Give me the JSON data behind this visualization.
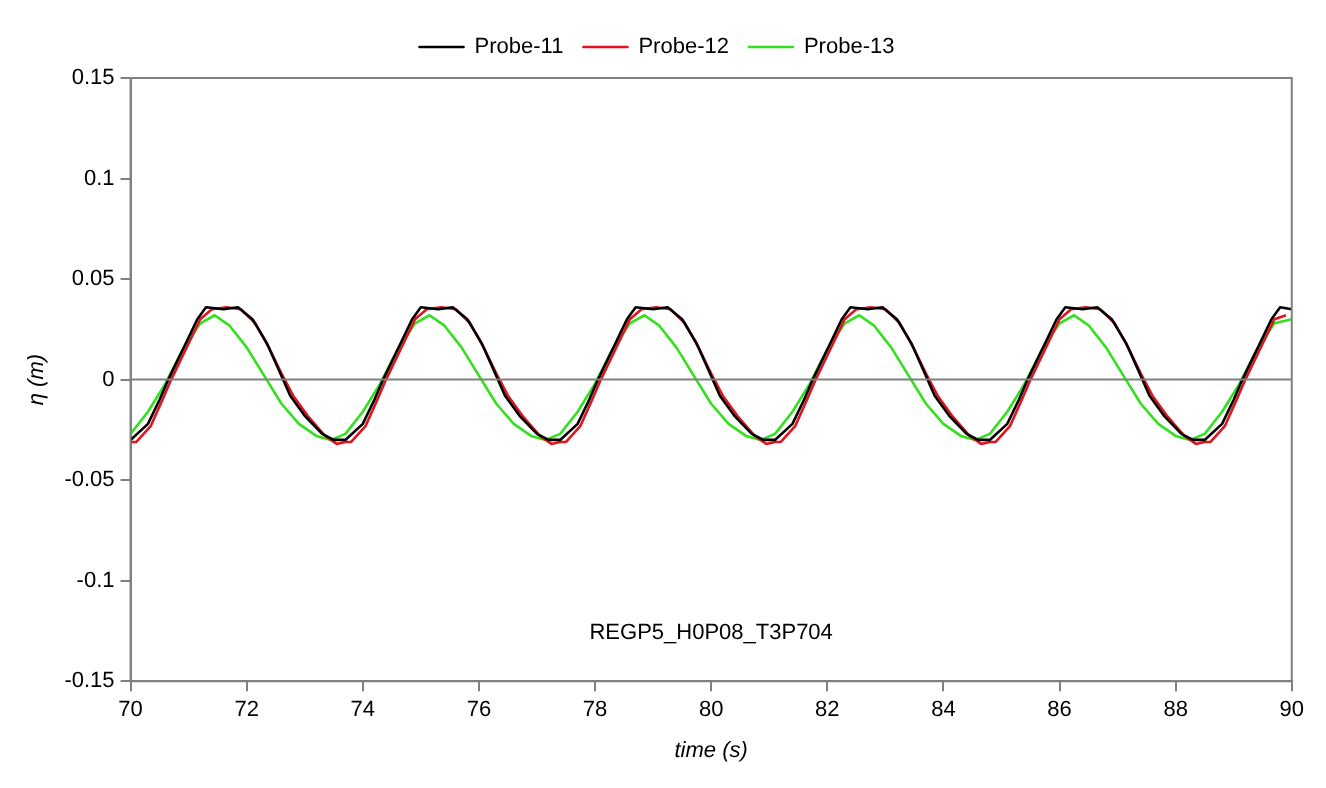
{
  "chart_data": {
    "type": "line",
    "xlabel": "time (s)",
    "ylabel": "η (m)",
    "xlim": [
      70,
      90
    ],
    "xticks": [
      70,
      72,
      74,
      76,
      78,
      80,
      82,
      84,
      86,
      88,
      90
    ],
    "ylim": [
      -0.15,
      0.15
    ],
    "yticks": [
      -0.15,
      -0.1,
      -0.05,
      0,
      0.05,
      0.1,
      0.15
    ],
    "grid": false,
    "legend": "top",
    "marker": "none",
    "line_style": "solid",
    "annotations": [
      "REGP5_H0P08_T3P704"
    ],
    "ref_lines": [
      {
        "axis": "y",
        "value": 0,
        "color": "#808080"
      }
    ],
    "series": [
      {
        "name": "Probe-11",
        "color": "#000000",
        "x": [
          70,
          70.3,
          70.5,
          70.65,
          70.9,
          71.15,
          71.3,
          71.6,
          71.85,
          72.1,
          72.35,
          72.55,
          72.75,
          73,
          73.3,
          73.5,
          73.7,
          74,
          74.2,
          74.35,
          74.6,
          74.85,
          75,
          75.3,
          75.55,
          75.8,
          76.05,
          76.25,
          76.45,
          76.7,
          77,
          77.2,
          77.4,
          77.7,
          77.9,
          78.05,
          78.3,
          78.55,
          78.7,
          79,
          79.25,
          79.5,
          79.75,
          79.95,
          80.15,
          80.4,
          80.7,
          80.9,
          81.1,
          81.4,
          81.6,
          81.75,
          82,
          82.25,
          82.4,
          82.7,
          82.95,
          83.2,
          83.45,
          83.65,
          83.85,
          84.1,
          84.4,
          84.6,
          84.8,
          85.1,
          85.3,
          85.45,
          85.7,
          85.95,
          86.1,
          86.4,
          86.65,
          86.9,
          87.15,
          87.35,
          87.55,
          87.8,
          88.1,
          88.3,
          88.5,
          88.8,
          89,
          89.15,
          89.4,
          89.65,
          89.8,
          90
        ],
        "values": [
          -0.03,
          -0.022,
          -0.01,
          0,
          0.015,
          0.03,
          0.036,
          0.035,
          0.036,
          0.03,
          0.018,
          0.005,
          -0.008,
          -0.018,
          -0.027,
          -0.03,
          -0.03,
          -0.022,
          -0.01,
          0,
          0.015,
          0.03,
          0.036,
          0.035,
          0.036,
          0.03,
          0.018,
          0.005,
          -0.008,
          -0.018,
          -0.027,
          -0.03,
          -0.03,
          -0.022,
          -0.01,
          0,
          0.015,
          0.03,
          0.036,
          0.035,
          0.036,
          0.03,
          0.018,
          0.005,
          -0.008,
          -0.018,
          -0.027,
          -0.03,
          -0.03,
          -0.022,
          -0.01,
          0,
          0.015,
          0.03,
          0.036,
          0.035,
          0.036,
          0.03,
          0.018,
          0.005,
          -0.008,
          -0.018,
          -0.027,
          -0.03,
          -0.03,
          -0.022,
          -0.01,
          0,
          0.015,
          0.03,
          0.036,
          0.035,
          0.036,
          0.03,
          0.018,
          0.005,
          -0.008,
          -0.018,
          -0.027,
          -0.03,
          -0.03,
          -0.022,
          -0.01,
          0,
          0.015,
          0.03,
          0.036,
          0.035
        ]
      },
      {
        "name": "Probe-12",
        "color": "#e0141e",
        "x": [
          70,
          70.1,
          70.35,
          70.55,
          70.7,
          70.95,
          71.2,
          71.4,
          71.65,
          71.9,
          72.15,
          72.4,
          72.6,
          72.8,
          73.05,
          73.35,
          73.55,
          73.7,
          73.8,
          74.05,
          74.25,
          74.4,
          74.65,
          74.9,
          75.1,
          75.35,
          75.6,
          75.85,
          76.1,
          76.3,
          76.5,
          76.75,
          77.05,
          77.25,
          77.4,
          77.5,
          77.75,
          77.95,
          78.1,
          78.35,
          78.6,
          78.8,
          79.05,
          79.3,
          79.55,
          79.8,
          80,
          80.2,
          80.45,
          80.75,
          80.95,
          81.1,
          81.2,
          81.45,
          81.65,
          81.8,
          82.05,
          82.3,
          82.5,
          82.75,
          83,
          83.25,
          83.5,
          83.7,
          83.9,
          84.15,
          84.45,
          84.65,
          84.8,
          84.9,
          85.15,
          85.35,
          85.5,
          85.75,
          86,
          86.2,
          86.45,
          86.7,
          86.95,
          87.2,
          87.4,
          87.6,
          87.85,
          88.15,
          88.35,
          88.5,
          88.6,
          88.85,
          89.05,
          89.2,
          89.45,
          89.7,
          89.9
        ],
        "values": [
          -0.031,
          -0.031,
          -0.023,
          -0.01,
          0,
          0.015,
          0.03,
          0.035,
          0.036,
          0.035,
          0.028,
          0.015,
          0.003,
          -0.008,
          -0.018,
          -0.028,
          -0.032,
          -0.031,
          -0.031,
          -0.023,
          -0.01,
          0,
          0.015,
          0.03,
          0.035,
          0.036,
          0.035,
          0.028,
          0.015,
          0.003,
          -0.008,
          -0.018,
          -0.028,
          -0.032,
          -0.031,
          -0.031,
          -0.023,
          -0.01,
          0,
          0.015,
          0.03,
          0.035,
          0.036,
          0.035,
          0.028,
          0.015,
          0.003,
          -0.008,
          -0.018,
          -0.028,
          -0.032,
          -0.031,
          -0.031,
          -0.023,
          -0.01,
          0,
          0.015,
          0.03,
          0.035,
          0.036,
          0.035,
          0.028,
          0.015,
          0.003,
          -0.008,
          -0.018,
          -0.028,
          -0.032,
          -0.031,
          -0.031,
          -0.023,
          -0.01,
          0,
          0.015,
          0.03,
          0.035,
          0.036,
          0.035,
          0.028,
          0.015,
          0.003,
          -0.008,
          -0.018,
          -0.028,
          -0.032,
          -0.031,
          -0.031,
          -0.023,
          -0.01,
          0,
          0.015,
          0.03,
          0.032
        ]
      },
      {
        "name": "Probe-13",
        "color": "#33e01e",
        "x": [
          70,
          70.3,
          70.6,
          70.9,
          71.2,
          71.45,
          71.7,
          72,
          72.3,
          72.6,
          72.9,
          73.2,
          73.45,
          73.7,
          74,
          74.3,
          74.6,
          74.9,
          75.15,
          75.4,
          75.7,
          76,
          76.3,
          76.6,
          76.9,
          77.15,
          77.4,
          77.7,
          78,
          78.3,
          78.6,
          78.85,
          79.1,
          79.4,
          79.7,
          80,
          80.3,
          80.6,
          80.85,
          81.1,
          81.4,
          81.7,
          82,
          82.3,
          82.55,
          82.8,
          83.1,
          83.4,
          83.7,
          84,
          84.3,
          84.55,
          84.8,
          85.1,
          85.4,
          85.7,
          86,
          86.25,
          86.5,
          86.8,
          87.1,
          87.4,
          87.7,
          88,
          88.25,
          88.5,
          88.8,
          89.1,
          89.4,
          89.7,
          90
        ],
        "values": [
          -0.027,
          -0.016,
          -0.002,
          0.015,
          0.028,
          0.032,
          0.027,
          0.016,
          0.002,
          -0.012,
          -0.022,
          -0.028,
          -0.03,
          -0.027,
          -0.016,
          -0.002,
          0.015,
          0.028,
          0.032,
          0.027,
          0.016,
          0.002,
          -0.012,
          -0.022,
          -0.028,
          -0.03,
          -0.027,
          -0.016,
          -0.002,
          0.015,
          0.028,
          0.032,
          0.027,
          0.016,
          0.002,
          -0.012,
          -0.022,
          -0.028,
          -0.03,
          -0.027,
          -0.016,
          -0.002,
          0.015,
          0.028,
          0.032,
          0.027,
          0.016,
          0.002,
          -0.012,
          -0.022,
          -0.028,
          -0.03,
          -0.027,
          -0.016,
          -0.002,
          0.015,
          0.028,
          0.032,
          0.027,
          0.016,
          0.002,
          -0.012,
          -0.022,
          -0.028,
          -0.03,
          -0.027,
          -0.016,
          -0.002,
          0.015,
          0.028,
          0.03
        ]
      }
    ]
  }
}
